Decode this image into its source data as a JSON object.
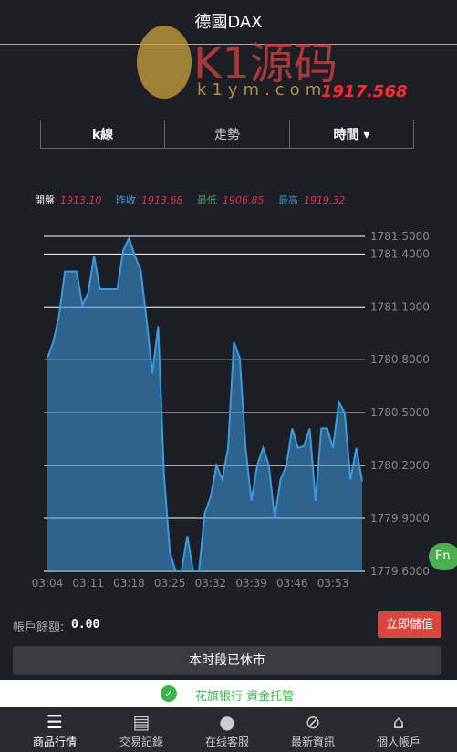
{
  "header": {
    "title": "德國DAX"
  },
  "watermark": {
    "brand": "K1源码",
    "site": "k1ym.com",
    "price": "1917.568"
  },
  "tabs": [
    "k線",
    "走勢",
    "時間"
  ],
  "info": [
    {
      "label": "開盤",
      "value": "1913.10"
    },
    {
      "label": "昨收",
      "value": "1913.68"
    },
    {
      "label": "最低",
      "value": "1906.85"
    },
    {
      "label": "最高",
      "value": "1919.32"
    }
  ],
  "chart_data": {
    "type": "area",
    "color": "#3a9be0",
    "categories": [
      "03:04",
      null,
      null,
      null,
      null,
      null,
      null,
      "03:11",
      null,
      null,
      null,
      null,
      null,
      null,
      "03:18",
      null,
      null,
      null,
      null,
      null,
      null,
      "03:25",
      null,
      null,
      null,
      null,
      null,
      null,
      "03:32",
      null,
      null,
      null,
      null,
      null,
      null,
      "03:39",
      null,
      null,
      null,
      null,
      null,
      null,
      "03:46",
      null,
      null,
      null,
      null,
      null,
      null,
      "03:53",
      null,
      null,
      null,
      null,
      null
    ],
    "values": [
      1780.81,
      1780.9,
      1781.05,
      1781.3,
      1781.3,
      1781.3,
      1781.11,
      1781.18,
      1781.39,
      1781.2,
      1781.2,
      1781.2,
      1781.2,
      1781.42,
      1781.49,
      1781.39,
      1781.31,
      1781.03,
      1780.72,
      1780.99,
      1780.15,
      1779.71,
      1779.6,
      1779.6,
      1779.8,
      1779.6,
      1779.6,
      1779.93,
      1780.02,
      1780.2,
      1780.12,
      1780.3,
      1780.9,
      1780.81,
      1780.3,
      1780.0,
      1780.2,
      1780.3,
      1780.2,
      1779.9,
      1780.12,
      1780.2,
      1780.41,
      1780.3,
      1780.31,
      1780.41,
      1780.0,
      1780.41,
      1780.41,
      1780.3,
      1780.56,
      1780.5,
      1780.12,
      1780.3,
      1780.11
    ],
    "ylim": [
      1779.6,
      1781.5
    ],
    "yticks": [
      {
        "value": 1781.5,
        "label": "1781.50000"
      },
      {
        "value": 1781.4,
        "label": "1781.40000"
      },
      {
        "value": 1781.1,
        "label": "1781.10000"
      },
      {
        "value": 1780.8,
        "label": "1780.80000"
      },
      {
        "value": 1780.5,
        "label": "1780.50000"
      },
      {
        "value": 1780.2,
        "label": "1780.20000"
      },
      {
        "value": 1779.9,
        "label": "1779.90000"
      },
      {
        "value": 1779.6,
        "label": "1779.60000"
      }
    ],
    "grid": true
  },
  "account": {
    "label": "帳戶餘額:",
    "value": "0.00",
    "button": "立即儲值"
  },
  "status": "本时段已休市",
  "banner": "花旗银行 資金托管",
  "lang": "En",
  "nav": [
    "商品行情",
    "交易記錄",
    "在线客服",
    "最新資訊",
    "個人帳戶"
  ]
}
